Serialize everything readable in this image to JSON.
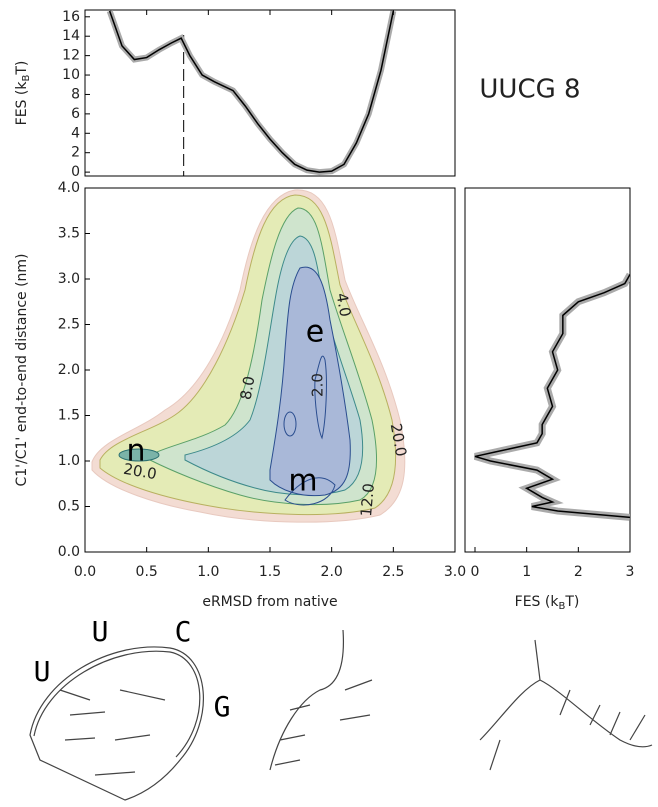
{
  "chart_data": [
    {
      "type": "line",
      "ylabel": {
        "pre": "FES (k",
        "sub": "B",
        "post": "T)"
      },
      "annotation": "UUCG 8",
      "x": [
        0.2,
        0.3,
        0.4,
        0.5,
        0.6,
        0.7,
        0.78,
        0.85,
        0.95,
        1.05,
        1.2,
        1.3,
        1.4,
        1.5,
        1.6,
        1.7,
        1.8,
        1.9,
        2.0,
        2.1,
        2.2,
        2.3,
        2.4,
        2.5
      ],
      "values": [
        16.6,
        13,
        11.6,
        11.8,
        12.6,
        13.3,
        13.8,
        12,
        10,
        9.3,
        8.4,
        6.8,
        5,
        3.4,
        2,
        0.8,
        0.2,
        0,
        0.1,
        0.8,
        3,
        6,
        10.5,
        16.6
      ],
      "color": "#000000",
      "vline": 0.8,
      "xlim": [
        0,
        3
      ],
      "ylim": [
        -0.4,
        16.7
      ],
      "yticks": [
        0,
        2,
        4,
        6,
        8,
        10,
        12,
        14,
        16
      ]
    },
    {
      "type": "contour",
      "xlabel": "eRMSD from native",
      "ylabel": "C1'/C1' end-to-end distance (nm)",
      "xlim": [
        0,
        3
      ],
      "ylim": [
        0,
        4
      ],
      "xticks": [
        {
          "value": 0,
          "label": "0.0"
        },
        {
          "value": 0.5,
          "label": "0.5"
        },
        {
          "value": 1,
          "label": "1.0"
        },
        {
          "value": 1.5,
          "label": "1.5"
        },
        {
          "value": 2,
          "label": "2.0"
        },
        {
          "value": 2.5,
          "label": "2.5"
        },
        {
          "value": 3,
          "label": "3.0"
        }
      ],
      "yticks": [
        {
          "value": 0,
          "label": "0.0"
        },
        {
          "value": 0.5,
          "label": "0.5"
        },
        {
          "value": 1,
          "label": "1.0"
        },
        {
          "value": 1.5,
          "label": "1.5"
        },
        {
          "value": 2,
          "label": "2.0"
        },
        {
          "value": 2.5,
          "label": "2.5"
        },
        {
          "value": 3,
          "label": "3.0"
        },
        {
          "value": 3.5,
          "label": "3.5"
        },
        {
          "value": 4,
          "label": "4.0"
        }
      ],
      "contour_labels": [
        {
          "value": 4,
          "label": "4.0"
        },
        {
          "value": 2,
          "label": "2.0"
        },
        {
          "value": 8,
          "label": "8.0"
        },
        {
          "value": 12,
          "label": "12.0"
        },
        {
          "value": 20,
          "label": "20.0"
        },
        {
          "value": 20,
          "label": "20.0"
        }
      ],
      "annotations": [
        "n",
        "e",
        "m"
      ]
    },
    {
      "type": "line-vertical",
      "xlabel": {
        "pre": "FES (k",
        "sub": "B",
        "post": "T)"
      },
      "y": [
        0.38,
        0.45,
        0.5,
        0.55,
        0.6,
        0.7,
        0.8,
        0.9,
        1.0,
        1.05,
        1.1,
        1.2,
        1.3,
        1.4,
        1.6,
        1.8,
        2.0,
        2.2,
        2.4,
        2.6,
        2.75,
        2.85,
        2.95,
        3.05
      ],
      "values": [
        3.0,
        1.6,
        1.1,
        1.5,
        1.3,
        1.0,
        1.5,
        1.2,
        0.3,
        0.0,
        0.4,
        1.2,
        1.3,
        1.3,
        1.5,
        1.4,
        1.6,
        1.5,
        1.7,
        1.7,
        2.0,
        2.5,
        2.9,
        3.0
      ],
      "color": "#000000",
      "xlim": [
        0,
        3
      ],
      "ylim": [
        0,
        4
      ],
      "xticks": [
        0,
        1,
        2,
        3
      ]
    }
  ],
  "structures": {
    "labels": [
      "U",
      "U",
      "C",
      "G"
    ]
  }
}
